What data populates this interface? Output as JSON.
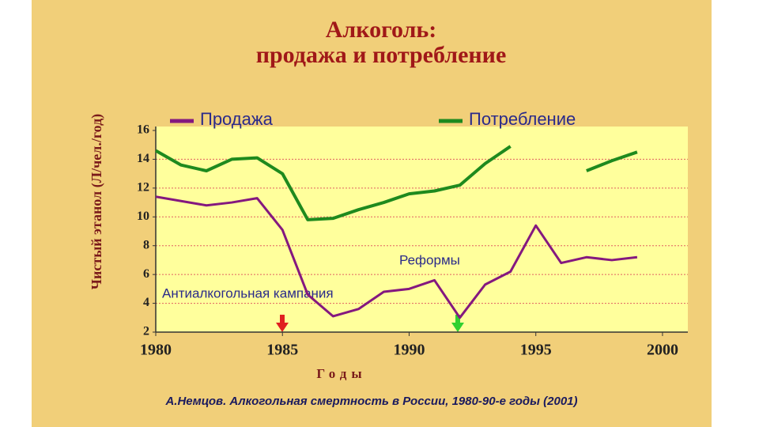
{
  "chart_data": {
    "type": "line",
    "title": "Алкоголь:",
    "subtitle": "продажа и потребление",
    "y_label": "Чистый этанол (Л/чел./год)",
    "x_label": "Годы",
    "source": "А.Немцов. Алкогольная смертность в России, 1980-90-е годы (2001)",
    "annotations": [
      "Реформы",
      "Антиалкогольная кампания"
    ],
    "x": [
      1980,
      1981,
      1982,
      1983,
      1984,
      1985,
      1986,
      1987,
      1988,
      1989,
      1990,
      1991,
      1992,
      1993,
      1994,
      1995,
      1996,
      1997,
      1998,
      1999
    ],
    "series": [
      {
        "name": "Продажа",
        "color": "#84187f",
        "values": [
          11.4,
          11.1,
          10.8,
          11.0,
          11.3,
          9.1,
          4.6,
          3.1,
          3.6,
          4.8,
          5.0,
          5.6,
          3.0,
          5.3,
          6.2,
          9.4,
          6.8,
          7.2,
          7.0,
          7.2
        ]
      },
      {
        "name": "Потребление",
        "color": "#1e8a1e",
        "values": [
          14.6,
          13.6,
          13.2,
          14.0,
          14.1,
          13.0,
          9.8,
          9.9,
          10.5,
          11.0,
          11.6,
          11.8,
          12.2,
          13.7,
          14.9,
          null,
          null,
          13.2,
          13.9,
          14.5
        ]
      }
    ],
    "xlim": [
      1980,
      2001
    ],
    "xticks": [
      1980,
      1985,
      1990,
      1995,
      2000
    ],
    "ylim": [
      2,
      16
    ],
    "yticks": [
      2,
      4,
      6,
      8,
      10,
      12,
      14,
      16
    ],
    "grid": true,
    "legend": "top"
  }
}
